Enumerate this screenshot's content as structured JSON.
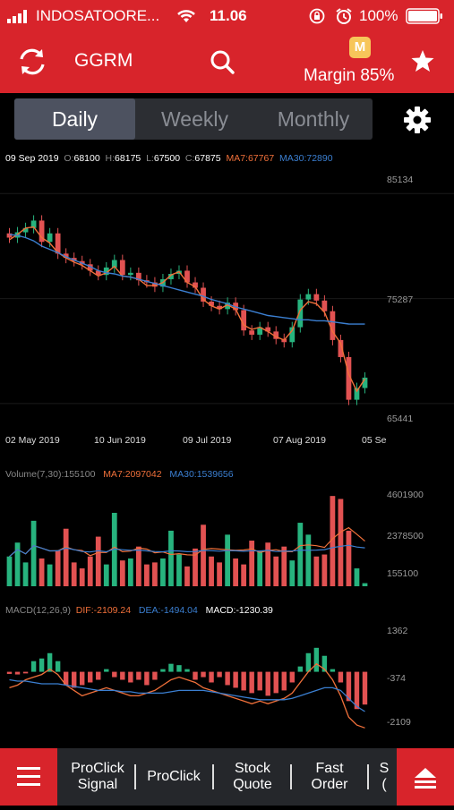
{
  "status_bar": {
    "carrier": "INDOSATOORE...",
    "time": "11.06",
    "battery": "100%"
  },
  "header": {
    "symbol": "GGRM",
    "margin_badge": "M",
    "margin_text": "Margin 85%",
    "icons": [
      "refresh-icon",
      "search-icon",
      "star-icon"
    ]
  },
  "tabs": [
    {
      "label": "Daily",
      "active": true
    },
    {
      "label": "Weekly",
      "active": false
    },
    {
      "label": "Monthly",
      "active": false
    }
  ],
  "price_info": {
    "date": "09 Sep 2019",
    "open_label": "O:",
    "open": "68100",
    "high_label": "H:",
    "high": "68175",
    "low_label": "L:",
    "low": "67500",
    "close_label": "C:",
    "close": "67875",
    "ma7_label": "MA7:",
    "ma7": "67767",
    "ma30_label": "MA30:",
    "ma30": "72890"
  },
  "price_axis": {
    "y_ticks": [
      "85134",
      "75287",
      "65441"
    ],
    "x_ticks": [
      "02 May 2019",
      "10 Jun 2019",
      "09 Jul 2019",
      "07 Aug 2019",
      "05 Se"
    ]
  },
  "volume_info": {
    "label": "Volume(7,30):",
    "value": "155100",
    "ma7_label": "MA7:",
    "ma7": "2097042",
    "ma30_label": "MA30:",
    "ma30": "1539656",
    "y_ticks": [
      "4601900",
      "2378500",
      "155100"
    ]
  },
  "macd_info": {
    "label": "MACD(12,26,9)",
    "dif_label": "DIF:",
    "dif": "-2109.24",
    "dea_label": "DEA:",
    "dea": "-1494.04",
    "macd_label": "MACD:",
    "macd": "-1230.39",
    "y_ticks": [
      "1362",
      "-374",
      "-2109"
    ]
  },
  "colors": {
    "accent": "#d8242b",
    "up": "#27b37e",
    "down": "#e25252",
    "ma7": "#f0703a",
    "ma30": "#3b7fd1"
  },
  "bottom_bar": {
    "items": [
      "ProClick Signal",
      "ProClick",
      "Stock Quote",
      "Fast Order",
      "S..."
    ],
    "item_lines": [
      [
        "ProClick",
        "Signal"
      ],
      [
        "ProClick"
      ],
      [
        "Stock",
        "Quote"
      ],
      [
        "Fast",
        "Order"
      ],
      [
        "S",
        "("
      ]
    ]
  },
  "chart_data": [
    {
      "type": "candlestick",
      "title": "",
      "ylim": [
        63000,
        87000
      ],
      "y_ticks": [
        85134,
        75287,
        65441
      ],
      "x_ticks": [
        "02 May 2019",
        "10 Jun 2019",
        "09 Jul 2019",
        "07 Aug 2019",
        "05 Se"
      ],
      "series": [
        {
          "name": "MA7",
          "values": [
            80800,
            81300,
            81900,
            82000,
            81000,
            80500,
            79600,
            79100,
            78700,
            78400,
            77900,
            77400,
            77700,
            78300,
            77400,
            77300,
            77100,
            76500,
            76500,
            76800,
            77500,
            77800,
            76800,
            76400,
            75200,
            74600,
            74300,
            74700,
            74300,
            72800,
            72400,
            72600,
            72200,
            71700,
            71400,
            72300,
            74200,
            75000,
            74800,
            74000,
            72200,
            71100,
            68200,
            66600,
            67767
          ]
        },
        {
          "name": "MA30",
          "values": [
            81300,
            81200,
            81000,
            80700,
            80200,
            79900,
            79600,
            79200,
            78900,
            78600,
            78300,
            77900,
            77700,
            77600,
            77400,
            77300,
            77100,
            76900,
            76700,
            76500,
            76300,
            76100,
            75900,
            75700,
            75500,
            75200,
            75000,
            74800,
            74500,
            74300,
            74100,
            73900,
            73700,
            73600,
            73500,
            73400,
            73300,
            73300,
            73200,
            73200,
            73100,
            73000,
            72900,
            72890,
            72890
          ]
        }
      ],
      "closes": [
        81000,
        81500,
        81900,
        82600,
        80600,
        81400,
        79500,
        79100,
        78800,
        78500,
        77900,
        77500,
        78200,
        78900,
        77500,
        77700,
        77000,
        76800,
        76400,
        77100,
        77600,
        77900,
        76800,
        76300,
        75000,
        74600,
        74300,
        74900,
        74200,
        72300,
        71900,
        72600,
        72200,
        71500,
        71200,
        72600,
        75200,
        75700,
        75100,
        74100,
        71400,
        69800,
        65800,
        66900,
        67875
      ]
    },
    {
      "type": "bar",
      "title": "",
      "ylim": [
        0,
        4601900
      ],
      "y_ticks": [
        4601900,
        2378500,
        155100
      ],
      "values": [
        1500000,
        2200000,
        1200000,
        3300000,
        1400000,
        1100000,
        1800000,
        2900000,
        1200000,
        900000,
        1500000,
        2500000,
        1100000,
        3700000,
        1300000,
        1400000,
        2000000,
        1100000,
        1200000,
        1400000,
        2800000,
        1600000,
        1000000,
        1900000,
        3100000,
        1500000,
        1200000,
        2600000,
        1400000,
        1100000,
        2300000,
        1800000,
        2200000,
        1500000,
        2000000,
        1300000,
        3200000,
        2600000,
        1500000,
        1600000,
        4550000,
        4400000,
        2800000,
        900000,
        155100
      ]
    },
    {
      "type": "bar",
      "title": "",
      "ylim": [
        -2400,
        1700
      ],
      "y_ticks": [
        1362,
        -374,
        -2109
      ],
      "series": [
        {
          "name": "MACD",
          "values": [
            -80,
            -100,
            -60,
            400,
            500,
            700,
            400,
            -500,
            -600,
            -500,
            -400,
            -300,
            100,
            -200,
            -300,
            -400,
            -300,
            -500,
            -300,
            100,
            300,
            250,
            100,
            -300,
            -200,
            -400,
            -200,
            -500,
            -600,
            -700,
            -800,
            -700,
            -900,
            -800,
            -700,
            -400,
            200,
            700,
            900,
            600,
            100,
            -400,
            -1100,
            -1400,
            -1230
          ]
        },
        {
          "name": "DIF",
          "values": [
            -600,
            -500,
            -300,
            -200,
            -100,
            100,
            -100,
            -500,
            -700,
            -900,
            -800,
            -700,
            -600,
            -700,
            -800,
            -900,
            -900,
            -800,
            -700,
            -500,
            -300,
            -200,
            -300,
            -400,
            -600,
            -700,
            -800,
            -900,
            -1000,
            -1100,
            -1200,
            -1100,
            -1200,
            -1100,
            -1000,
            -800,
            -400,
            0,
            300,
            100,
            -300,
            -900,
            -1700,
            -2000,
            -2109
          ]
        },
        {
          "name": "DEA",
          "values": [
            -300,
            -350,
            -350,
            -400,
            -450,
            -450,
            -450,
            -500,
            -550,
            -600,
            -650,
            -700,
            -700,
            -700,
            -750,
            -750,
            -800,
            -800,
            -800,
            -800,
            -750,
            -700,
            -700,
            -700,
            -700,
            -750,
            -800,
            -850,
            -900,
            -950,
            -1000,
            -1050,
            -1050,
            -1050,
            -1050,
            -1000,
            -900,
            -800,
            -700,
            -600,
            -600,
            -700,
            -1000,
            -1300,
            -1494
          ]
        }
      ]
    }
  ]
}
